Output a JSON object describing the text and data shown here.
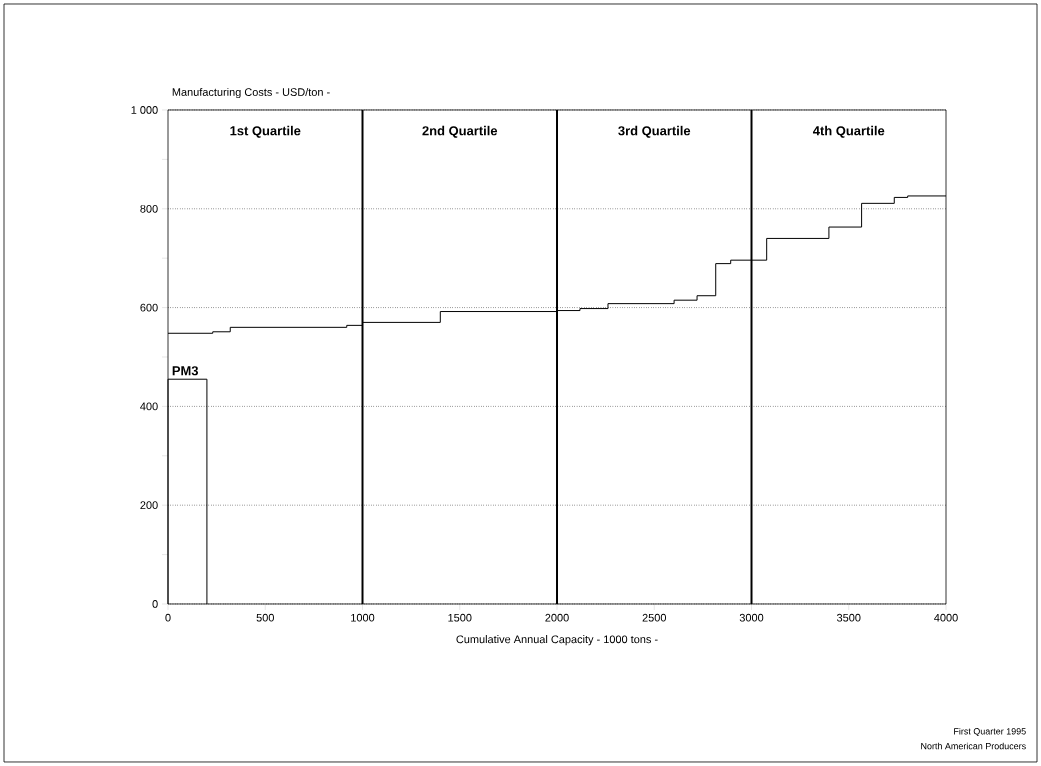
{
  "chart_data": {
    "type": "step",
    "xlabel": "Cumulative Annual Capacity - 1000 tons -",
    "ylabel": "Manufacturing Costs - USD/ton -",
    "series": [
      {
        "name": "PM3",
        "color": "#000000",
        "x": [
          0,
          0,
          200,
          200
        ],
        "values": [
          0,
          455,
          455,
          0
        ]
      },
      {
        "color": "#000000",
        "x": [
          0,
          230,
          320,
          919,
          1000,
          1400,
          2000,
          2118,
          2262,
          2602,
          2720,
          2816,
          2893,
          3078,
          3398,
          3566,
          3734,
          3803,
          4000
        ],
        "values": [
          548,
          551,
          560,
          564,
          570,
          592,
          594,
          598,
          608,
          615,
          624,
          689,
          696,
          740,
          763,
          811,
          823,
          826,
          826
        ]
      }
    ],
    "xlim": [
      0,
      4000
    ],
    "ylim": [
      0,
      1000
    ],
    "xticks": [
      0,
      500,
      1000,
      1500,
      2000,
      2500,
      3000,
      3500,
      4000
    ],
    "yticks": [
      0,
      {
        "value": 100,
        "label": null
      },
      200,
      {
        "value": 300,
        "label": null
      },
      400,
      {
        "value": 500,
        "label": null
      },
      600,
      {
        "value": 700,
        "label": null
      },
      800,
      {
        "value": 900,
        "label": null
      },
      {
        "value": 1000,
        "label": "1 000"
      }
    ],
    "grid": "y",
    "ref_lines": [
      {
        "axis": "x",
        "value": 1000
      },
      {
        "axis": "x",
        "value": 2000
      },
      {
        "axis": "x",
        "value": 3000
      }
    ],
    "annotations": [
      "1st Quartile",
      "2nd Quartile",
      "3rd Quartile",
      "4th Quartile",
      "First Quarter 1995",
      "North American Producers"
    ]
  }
}
